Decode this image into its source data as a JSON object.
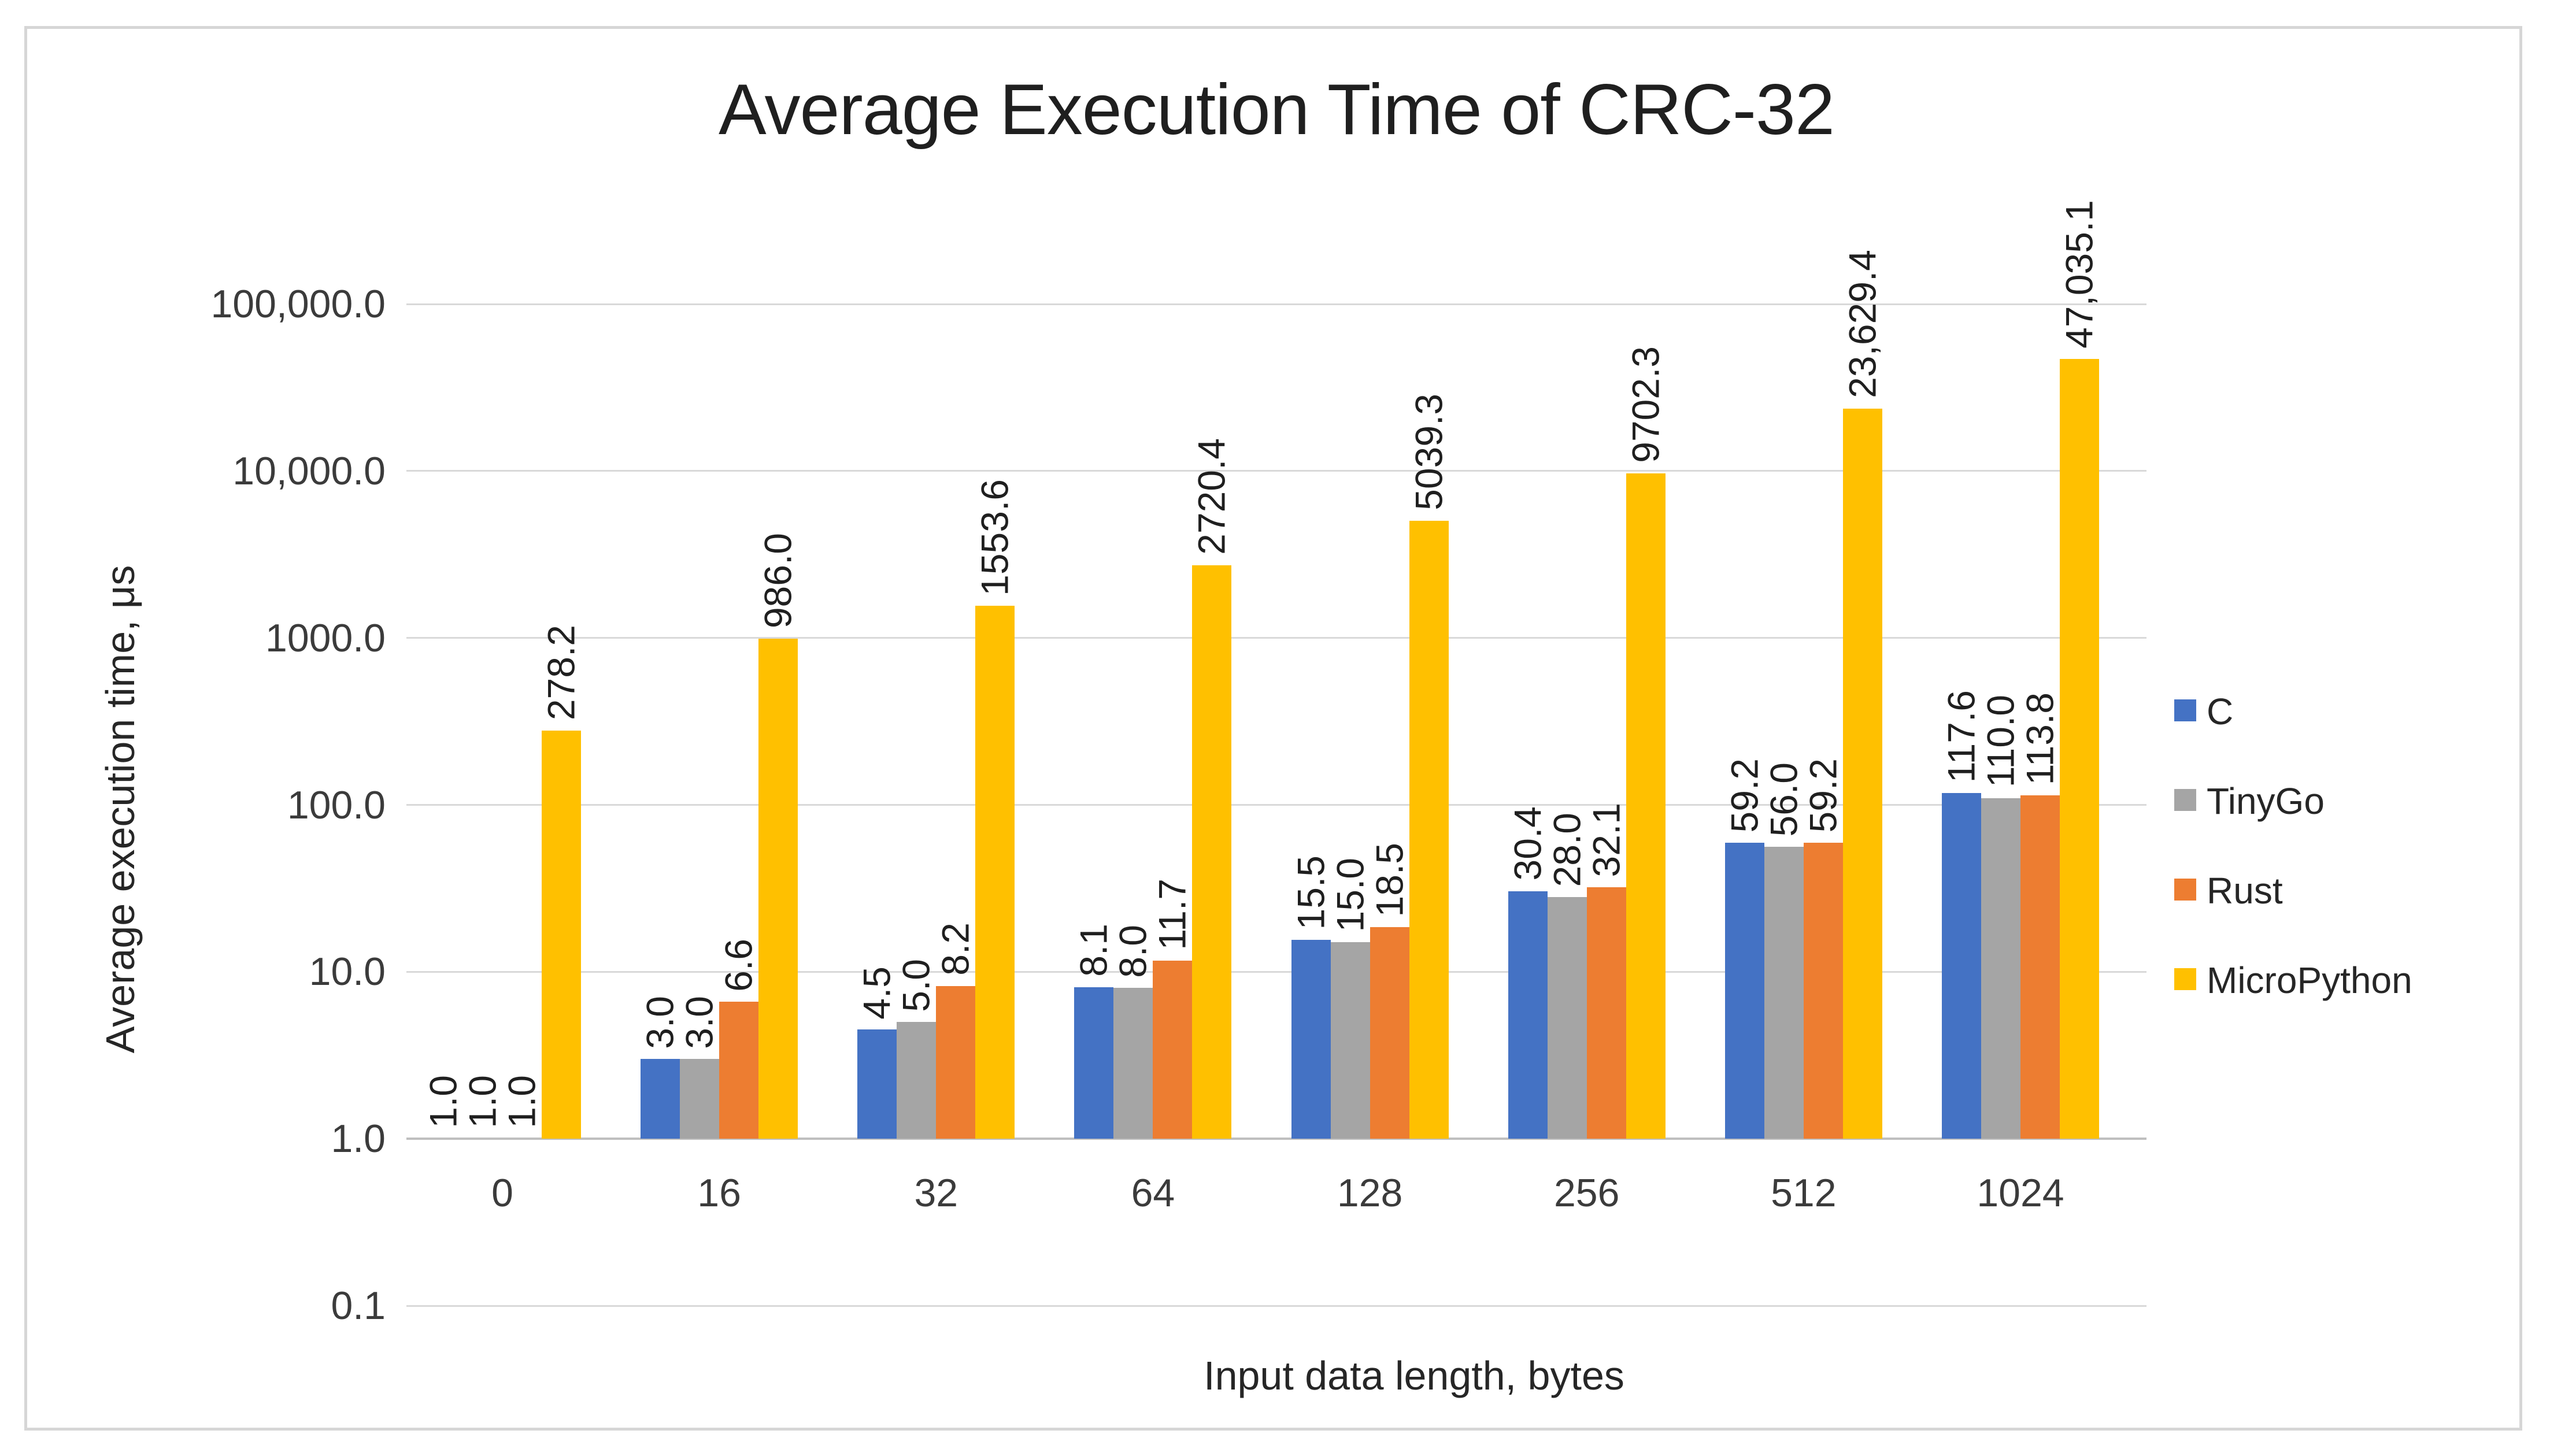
{
  "chart_data": {
    "type": "bar",
    "title": "Average Execution Time of CRC-32",
    "xlabel": "Input data length, bytes",
    "ylabel": "Average execution time, μs",
    "scale": "log10",
    "ylim": [
      0.1,
      100000
    ],
    "bar_baseline": 1.0,
    "grid": true,
    "legend_position": "right",
    "y_ticks": [
      {
        "value": 100000,
        "label": "100,000.0"
      },
      {
        "value": 10000,
        "label": "10,000.0"
      },
      {
        "value": 1000,
        "label": "1000.0"
      },
      {
        "value": 100,
        "label": "100.0"
      },
      {
        "value": 10,
        "label": "10.0"
      },
      {
        "value": 1,
        "label": "1.0"
      },
      {
        "value": 0.1,
        "label": "0.1"
      }
    ],
    "categories": [
      "0",
      "16",
      "32",
      "64",
      "128",
      "256",
      "512",
      "1024"
    ],
    "series": [
      {
        "name": "C",
        "color": "#4472C4",
        "values": [
          1.0,
          3.0,
          4.5,
          8.1,
          15.5,
          30.4,
          59.2,
          117.6
        ],
        "labels": [
          "1.0",
          "3.0",
          "4.5",
          "8.1",
          "15.5",
          "30.4",
          "59.2",
          "117.6"
        ]
      },
      {
        "name": "TinyGo",
        "color": "#A5A5A5",
        "values": [
          1.0,
          3.0,
          5.0,
          8.0,
          15.0,
          28.0,
          56.0,
          110.0
        ],
        "labels": [
          "1.0",
          "3.0",
          "5.0",
          "8.0",
          "15.0",
          "28.0",
          "56.0",
          "110.0"
        ]
      },
      {
        "name": "Rust",
        "color": "#ED7D31",
        "values": [
          1.0,
          6.6,
          8.2,
          11.7,
          18.5,
          32.1,
          59.2,
          113.8
        ],
        "labels": [
          "1.0",
          "6.6",
          "8.2",
          "11.7",
          "18.5",
          "32.1",
          "59.2",
          "113.8"
        ]
      },
      {
        "name": "MicroPython",
        "color": "#FFC000",
        "values": [
          278.2,
          986.0,
          1553.6,
          2720.4,
          5039.3,
          9702.3,
          23629.4,
          47035.1
        ],
        "labels": [
          "278.2",
          "986.0",
          "1553.6",
          "2720.4",
          "5039.3",
          "9702.3",
          "23,629.4",
          "47,035.1"
        ]
      }
    ]
  },
  "colors": {
    "gridline": "#D9D9D9",
    "baseline": "#BFBFBF",
    "border": "#D6D6D6",
    "background": "#FFFFFF",
    "title_text": "#1F1F1F",
    "tick_text": "#3B3B3B"
  }
}
